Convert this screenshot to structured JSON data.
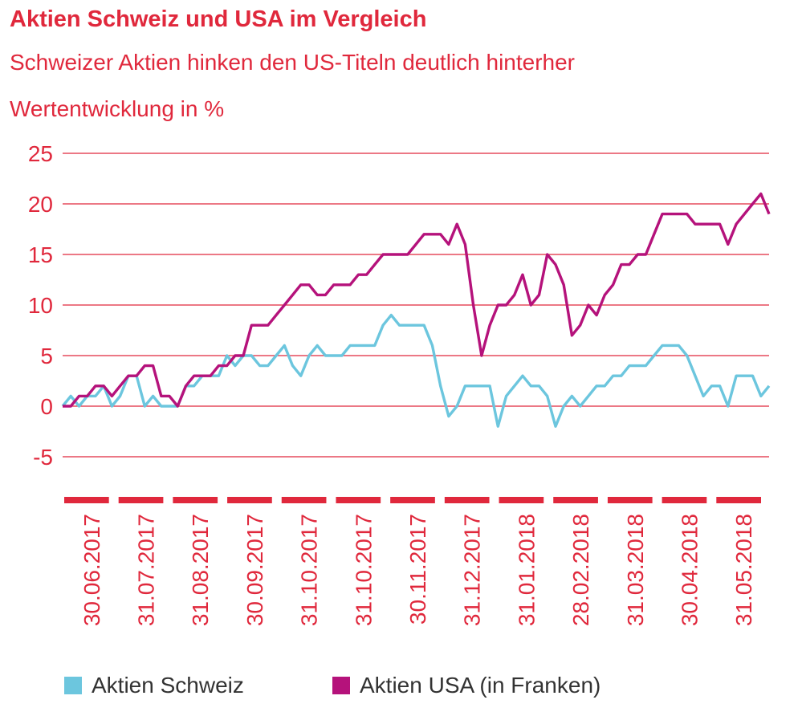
{
  "chart_data": {
    "type": "line",
    "title": "Aktien Schweiz und USA im Vergleich",
    "subtitle": "Schweizer Aktien hinken den US-Titeln deutlich hinterher",
    "ylabel": "Wertentwicklung in %",
    "ylim": [
      -5,
      25
    ],
    "yticks": [
      "25",
      "20",
      "15",
      "10",
      "5",
      "0",
      "-5"
    ],
    "x_tick_labels": [
      "30.06.2017",
      "31.07.2017",
      "31.08.2017",
      "30.09.2017",
      "31.10.2017",
      "31.10.2017",
      "30.11.2017",
      "31.12.2017",
      "31.01.2018",
      "28.02.2018",
      "31.03.2018",
      "30.04.2018",
      "31.05.2018"
    ],
    "grid": true,
    "legend": "bottom",
    "series": [
      {
        "name": "Aktien Schweiz",
        "color": "#6cc6de",
        "values": [
          0,
          1,
          0,
          1,
          1,
          2,
          0,
          1,
          3,
          3,
          0,
          1,
          0,
          0,
          0,
          2,
          2,
          3,
          3,
          3,
          5,
          4,
          5,
          5,
          4,
          4,
          5,
          6,
          4,
          3,
          5,
          6,
          5,
          5,
          5,
          6,
          6,
          6,
          6,
          8,
          9,
          8,
          8,
          8,
          8,
          6,
          2,
          -1,
          0,
          2,
          2,
          2,
          2,
          -2,
          1,
          2,
          3,
          2,
          2,
          1,
          -2,
          0,
          1,
          0,
          1,
          2,
          2,
          3,
          3,
          4,
          4,
          4,
          5,
          6,
          6,
          6,
          5,
          3,
          1,
          2,
          2,
          0,
          3,
          3,
          3,
          1,
          2
        ]
      },
      {
        "name": "Aktien USA (in Franken)",
        "color": "#b5127b",
        "values": [
          0,
          0,
          1,
          1,
          2,
          2,
          1,
          2,
          3,
          3,
          4,
          4,
          1,
          1,
          0,
          2,
          3,
          3,
          3,
          4,
          4,
          5,
          5,
          8,
          8,
          8,
          9,
          10,
          11,
          12,
          12,
          11,
          11,
          12,
          12,
          12,
          13,
          13,
          14,
          15,
          15,
          15,
          15,
          16,
          17,
          17,
          17,
          16,
          18,
          16,
          10,
          5,
          8,
          10,
          10,
          11,
          13,
          10,
          11,
          15,
          14,
          12,
          7,
          8,
          10,
          9,
          11,
          12,
          14,
          14,
          15,
          15,
          17,
          19,
          19,
          19,
          19,
          18,
          18,
          18,
          18,
          16,
          18,
          19,
          20,
          21,
          19
        ]
      }
    ]
  },
  "legend": {
    "items": [
      {
        "label": "Aktien Schweiz",
        "color": "#6cc6de"
      },
      {
        "label": "Aktien USA (in Franken)",
        "color": "#b5127b"
      }
    ]
  }
}
